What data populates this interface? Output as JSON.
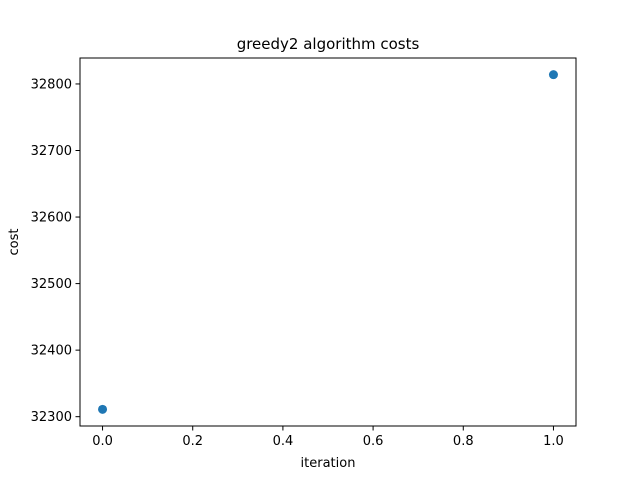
{
  "chart_data": {
    "type": "scatter",
    "title": "greedy2 algorithm costs",
    "xlabel": "iteration",
    "ylabel": "cost",
    "x": [
      0.0,
      1.0
    ],
    "y": [
      32311,
      32814
    ],
    "xlim": [
      -0.05,
      1.05
    ],
    "ylim": [
      32286,
      32839
    ],
    "xticks": [
      0.0,
      0.2,
      0.4,
      0.6,
      0.8,
      1.0
    ],
    "xtick_labels": [
      "0.0",
      "0.2",
      "0.4",
      "0.6",
      "0.8",
      "1.0"
    ],
    "yticks": [
      32300,
      32400,
      32500,
      32600,
      32700,
      32800
    ],
    "ytick_labels": [
      "32300",
      "32400",
      "32500",
      "32600",
      "32700",
      "32800"
    ],
    "grid": false,
    "legend": false,
    "marker_color": "#1f77b4"
  }
}
